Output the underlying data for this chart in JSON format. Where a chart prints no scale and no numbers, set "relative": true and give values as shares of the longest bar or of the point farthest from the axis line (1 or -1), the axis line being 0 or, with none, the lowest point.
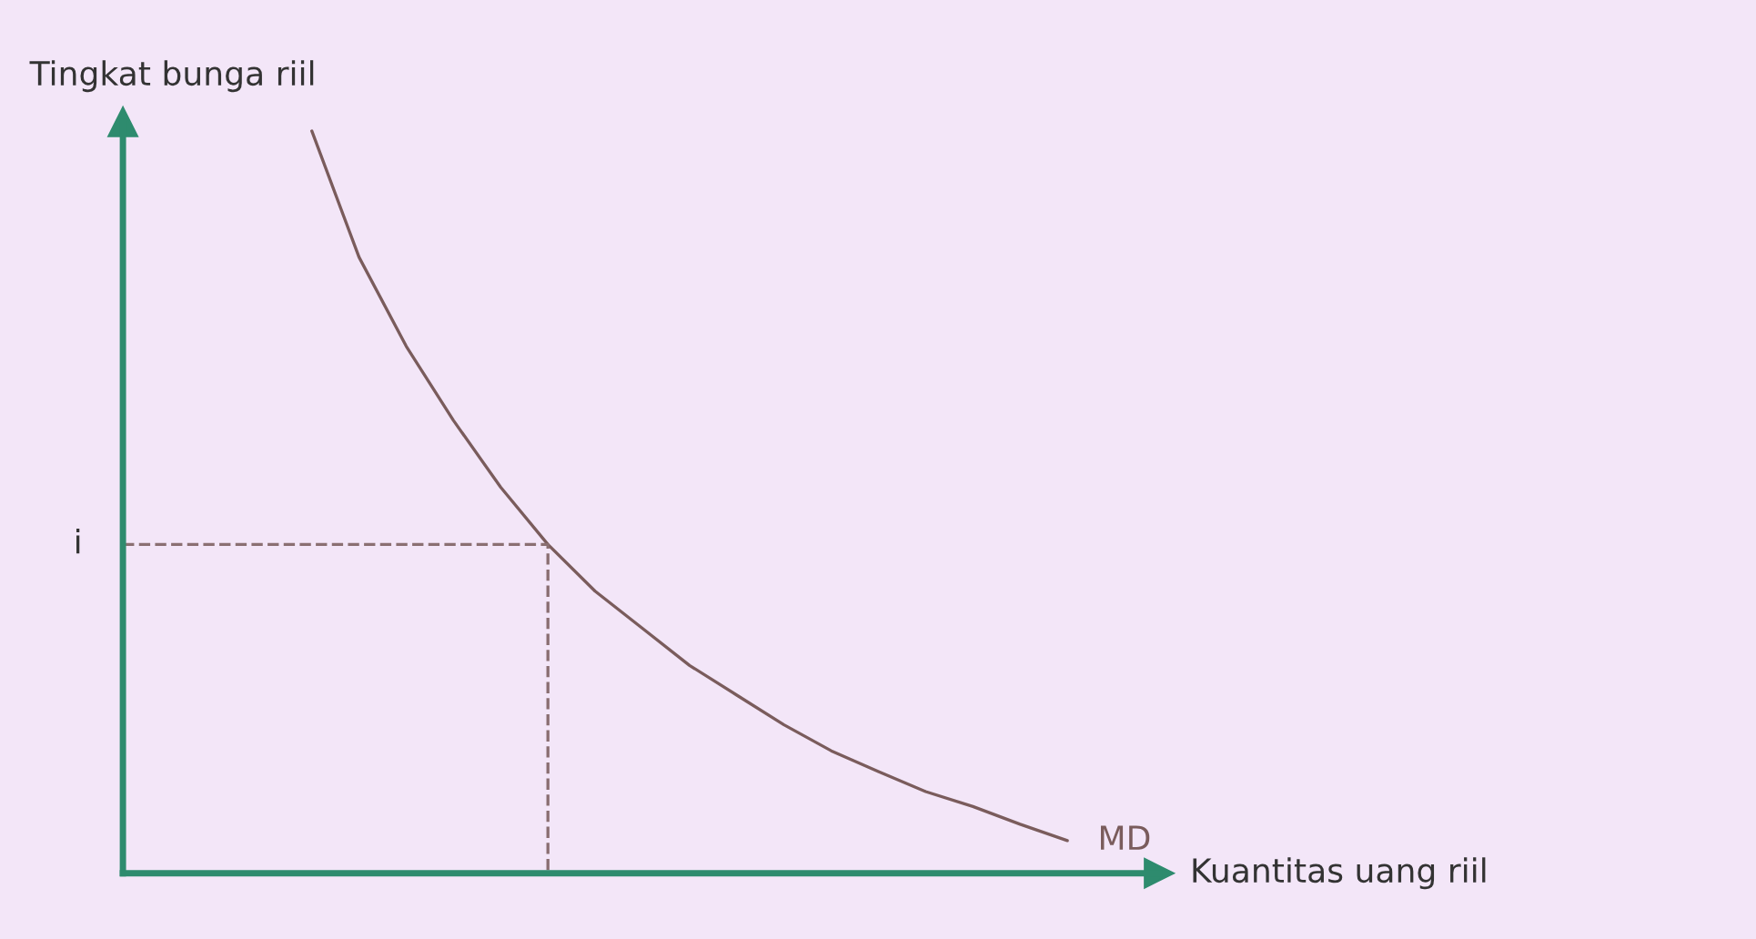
{
  "chart_data": {
    "type": "line",
    "relative": true,
    "xlabel": "Kuantitas uang riil",
    "ylabel": "Tingkat bunga riil",
    "legend": false,
    "categories": [
      null,
      null,
      null,
      null,
      null,
      null,
      null,
      null,
      null,
      null,
      null,
      null,
      null,
      null,
      null,
      null,
      null,
      null,
      null,
      null,
      null
    ],
    "annotations": [
      "i"
    ],
    "series": [
      {
        "name": "MD",
        "color": "#7a5c5c",
        "values": [
          null,
          null,
          null,
          null,
          1.0,
          0.83,
          0.71,
          0.61,
          0.52,
          0.443,
          0.38,
          0.33,
          0.28,
          0.24,
          0.2,
          0.165,
          0.137,
          0.11,
          0.09,
          0.066,
          0.044
        ]
      },
      {
        "type": "step",
        "color": "#8a6f72",
        "line_style": "dashed",
        "values": [
          0.443,
          0.443,
          0.443,
          0.443,
          0.443,
          0.443,
          0.443,
          0.443,
          0.443,
          0.443,
          0,
          null,
          null,
          null,
          null,
          null,
          null,
          null,
          null,
          null,
          null
        ]
      }
    ]
  }
}
